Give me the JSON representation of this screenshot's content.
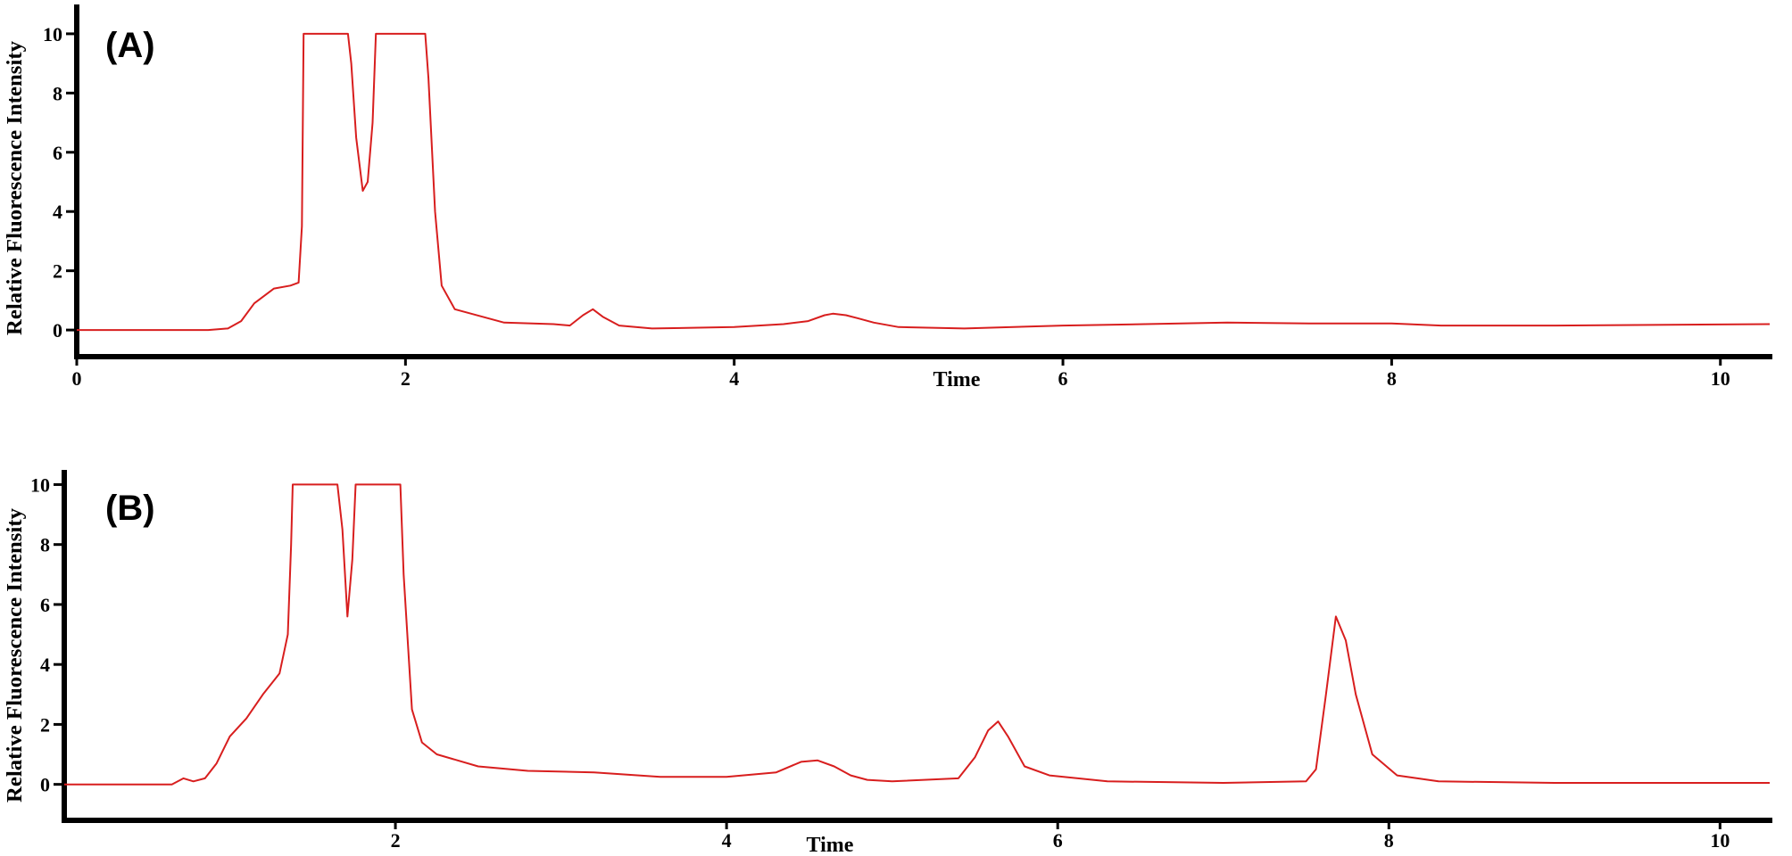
{
  "chart_data": [
    {
      "type": "line",
      "panel_label": "(A)",
      "xlabel": "Time",
      "ylabel": "Relative Fluorescence Intensity",
      "xlim": [
        0,
        10.3
      ],
      "ylim": [
        -0.9,
        10.9
      ],
      "x_ticks": [
        0,
        2,
        4,
        6,
        8,
        10
      ],
      "x_tick_labels": [
        "0",
        "2",
        "4",
        "6",
        "8",
        "10"
      ],
      "y_ticks": [
        0,
        2,
        4,
        6,
        8,
        10
      ],
      "y_tick_labels": [
        "0",
        "2",
        "4",
        "6",
        "8",
        "10"
      ],
      "grid": false,
      "legend": "none",
      "color": "#d81e1e",
      "series": [
        {
          "x": [
            0,
            0.8,
            0.92,
            1.0,
            1.08,
            1.2,
            1.3,
            1.35,
            1.37,
            1.38,
            1.6,
            1.65,
            1.67,
            1.7,
            1.74,
            1.77,
            1.8,
            1.82,
            1.83,
            2.12,
            2.14,
            2.18,
            2.22,
            2.3,
            2.6,
            2.9,
            3.0,
            3.08,
            3.14,
            3.2,
            3.3,
            3.5,
            4.0,
            4.3,
            4.45,
            4.55,
            4.6,
            4.68,
            4.75,
            4.85,
            5.0,
            5.4,
            6.0,
            6.5,
            7.0,
            7.5,
            8.0,
            8.3,
            9.0,
            10.3
          ],
          "y": [
            0,
            0,
            0.05,
            0.3,
            0.9,
            1.4,
            1.5,
            1.6,
            3.5,
            10,
            10,
            10,
            9.0,
            6.5,
            4.7,
            5.0,
            7.0,
            10,
            10,
            10,
            8.5,
            4.0,
            1.5,
            0.7,
            0.25,
            0.2,
            0.15,
            0.5,
            0.7,
            0.45,
            0.15,
            0.05,
            0.1,
            0.2,
            0.3,
            0.5,
            0.55,
            0.5,
            0.4,
            0.25,
            0.1,
            0.05,
            0.15,
            0.2,
            0.25,
            0.22,
            0.22,
            0.15,
            0.15,
            0.2
          ]
        }
      ]
    },
    {
      "type": "line",
      "panel_label": "(B)",
      "xlabel": "Time",
      "ylabel": "Relative Fluorescence Intensity",
      "xlim": [
        0,
        10.3
      ],
      "ylim": [
        -1.2,
        10.4
      ],
      "x_ticks": [
        2,
        4,
        6,
        8,
        10
      ],
      "x_tick_labels": [
        "2",
        "4",
        "6",
        "8",
        "10"
      ],
      "y_ticks": [
        0,
        2,
        4,
        6,
        8,
        10
      ],
      "y_tick_labels": [
        "0",
        "2",
        "4",
        "6",
        "8",
        "10"
      ],
      "grid": false,
      "legend": "none",
      "color": "#d81e1e",
      "series": [
        {
          "x": [
            0,
            0.65,
            0.72,
            0.78,
            0.85,
            0.92,
            1.0,
            1.1,
            1.2,
            1.3,
            1.35,
            1.37,
            1.38,
            1.6,
            1.65,
            1.68,
            1.71,
            1.74,
            1.76,
            1.77,
            2.03,
            2.05,
            2.1,
            2.16,
            2.25,
            2.5,
            2.8,
            3.2,
            3.6,
            4.0,
            4.3,
            4.45,
            4.55,
            4.65,
            4.75,
            4.85,
            5.0,
            5.4,
            5.5,
            5.58,
            5.64,
            5.7,
            5.8,
            5.95,
            6.3,
            7.0,
            7.5,
            7.56,
            7.62,
            7.68,
            7.74,
            7.8,
            7.9,
            8.05,
            8.3,
            9.0,
            10.3
          ],
          "y": [
            0,
            0,
            0.2,
            0.1,
            0.2,
            0.7,
            1.6,
            2.2,
            3.0,
            3.7,
            5.0,
            8.0,
            10,
            10,
            10,
            8.5,
            5.6,
            7.5,
            10,
            10,
            10,
            7.0,
            2.5,
            1.4,
            1.0,
            0.6,
            0.45,
            0.4,
            0.25,
            0.25,
            0.4,
            0.75,
            0.8,
            0.6,
            0.3,
            0.15,
            0.1,
            0.2,
            0.9,
            1.8,
            2.1,
            1.6,
            0.6,
            0.3,
            0.1,
            0.05,
            0.1,
            0.5,
            3.0,
            5.6,
            4.8,
            3.0,
            1.0,
            0.3,
            0.1,
            0.05,
            0.05
          ]
        }
      ]
    }
  ]
}
